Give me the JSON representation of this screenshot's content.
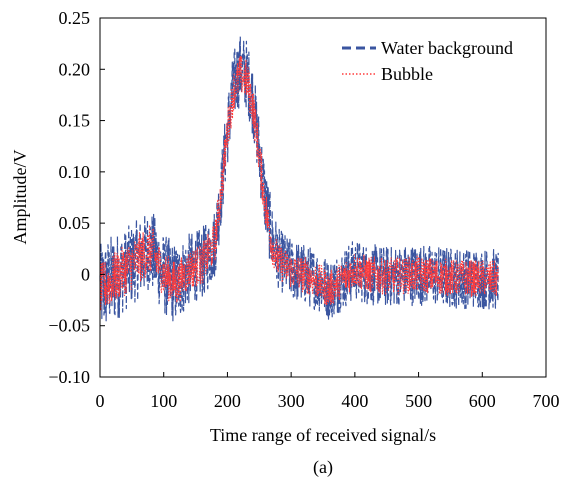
{
  "chart_data": {
    "type": "line",
    "title": "",
    "xlabel": "Time range of received signal/s",
    "ylabel": "Amplitude/V",
    "caption": "(a)",
    "xlim": [
      0,
      700
    ],
    "ylim": [
      -0.1,
      0.25
    ],
    "xticks": [
      0,
      100,
      200,
      300,
      400,
      500,
      600,
      700
    ],
    "yticks": [
      -0.1,
      -0.05,
      0,
      0.05,
      0.1,
      0.15,
      0.2,
      0.25
    ],
    "ytick_labels": [
      "−0.10",
      "−0.05",
      "0",
      "0.05",
      "0.10",
      "0.15",
      "0.20",
      "0.25"
    ],
    "xtick_labels": [
      "0",
      "100",
      "200",
      "300",
      "400",
      "500",
      "600",
      "700"
    ],
    "grid": false,
    "legend_position": "top-right",
    "series": [
      {
        "name": "Water background",
        "style": "dashed",
        "color": "#3a55a0",
        "x": [
          0,
          20,
          40,
          60,
          80,
          100,
          120,
          140,
          160,
          180,
          190,
          200,
          210,
          220,
          230,
          240,
          250,
          260,
          270,
          280,
          300,
          320,
          340,
          360,
          380,
          400,
          420,
          450,
          500,
          550,
          600,
          625
        ],
        "values": [
          -0.015,
          -0.005,
          0.005,
          0.015,
          0.025,
          0.0,
          -0.01,
          0.005,
          0.01,
          0.03,
          0.08,
          0.14,
          0.185,
          0.2,
          0.195,
          0.17,
          0.12,
          0.07,
          0.035,
          0.015,
          0.005,
          0.0,
          -0.005,
          -0.015,
          -0.005,
          0.005,
          0.0,
          -0.002,
          0.0,
          -0.003,
          -0.004,
          -0.005
        ],
        "envelope": [
          0.045,
          0.045,
          0.04,
          0.04,
          0.04,
          0.04,
          0.04,
          0.035,
          0.035,
          0.035,
          0.035,
          0.035,
          0.035,
          0.035,
          0.035,
          0.035,
          0.035,
          0.035,
          0.035,
          0.03,
          0.03,
          0.03,
          0.03,
          0.03,
          0.03,
          0.03,
          0.03,
          0.03,
          0.03,
          0.03,
          0.03,
          0.03
        ]
      },
      {
        "name": "Bubble",
        "style": "dotted",
        "color": "#ff3b3b",
        "x": [
          0,
          20,
          40,
          60,
          80,
          100,
          120,
          140,
          160,
          180,
          190,
          200,
          210,
          220,
          230,
          240,
          250,
          260,
          270,
          280,
          300,
          320,
          340,
          360,
          380,
          400,
          420,
          450,
          500,
          550,
          600,
          625
        ],
        "values": [
          -0.015,
          -0.005,
          0.005,
          0.015,
          0.025,
          0.0,
          -0.01,
          0.005,
          0.01,
          0.03,
          0.08,
          0.14,
          0.18,
          0.195,
          0.19,
          0.165,
          0.115,
          0.065,
          0.03,
          0.012,
          0.004,
          0.0,
          -0.006,
          -0.015,
          -0.005,
          0.005,
          0.0,
          -0.002,
          0.0,
          -0.003,
          -0.004,
          -0.005
        ],
        "envelope": [
          0.025,
          0.025,
          0.025,
          0.025,
          0.025,
          0.022,
          0.022,
          0.02,
          0.02,
          0.02,
          0.02,
          0.02,
          0.02,
          0.02,
          0.02,
          0.02,
          0.02,
          0.02,
          0.02,
          0.018,
          0.018,
          0.018,
          0.018,
          0.018,
          0.018,
          0.018,
          0.018,
          0.018,
          0.018,
          0.018,
          0.018,
          0.018
        ]
      }
    ]
  }
}
